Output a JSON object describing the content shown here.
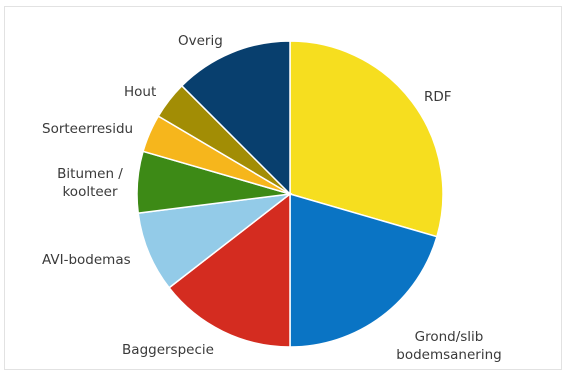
{
  "chart_data": {
    "type": "pie",
    "start": "12 o'clock",
    "direction": "clockwise",
    "slices": [
      {
        "label": "RDF",
        "value": 29.5,
        "color": "#f6de1f"
      },
      {
        "label": "Grond/slib bodemsanering",
        "label_lines": [
          "Grond/slib",
          "bodemsanering"
        ],
        "value": 20.5,
        "color": "#0a74c4"
      },
      {
        "label": "Baggerspecie",
        "value": 14.5,
        "color": "#d42c20"
      },
      {
        "label": "AVI-bodemas",
        "value": 8.5,
        "color": "#93cbe8"
      },
      {
        "label": "Bitumen / koolteer",
        "label_lines": [
          "Bitumen /",
          "koolteer"
        ],
        "value": 6.5,
        "color": "#3d8a16"
      },
      {
        "label": "Sorteerresidu",
        "value": 4,
        "color": "#f6b61c"
      },
      {
        "label": "Hout",
        "value": 4,
        "color": "#a28d05"
      },
      {
        "label": "Overig",
        "value": 12.5,
        "color": "#083f6e"
      }
    ]
  }
}
